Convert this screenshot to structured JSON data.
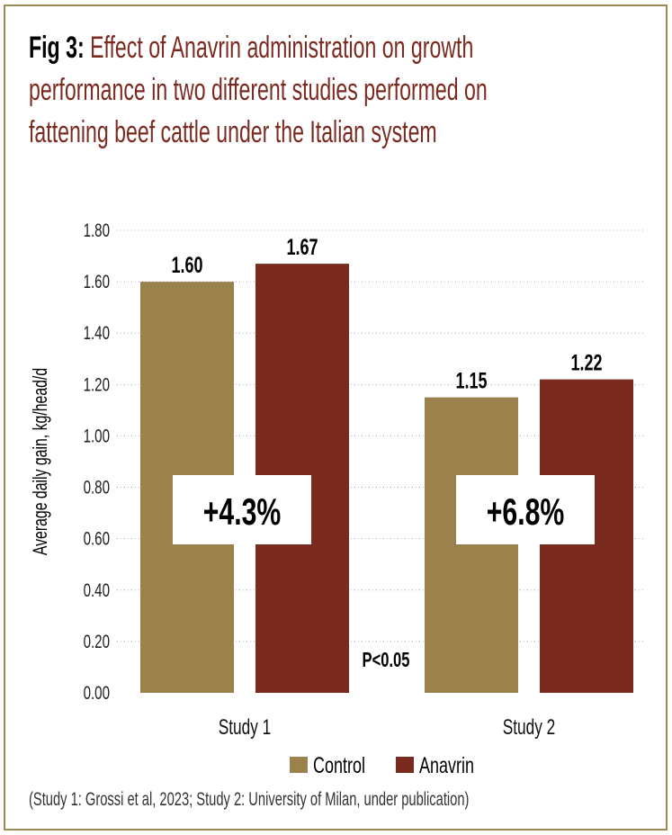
{
  "title": {
    "prefix": "Fig 3:",
    "lines": [
      "Effect of Anavrin administration on growth",
      "performance in two different studies performed on",
      "fattening beef cattle under the Italian system"
    ]
  },
  "footnote": "(Study 1: Grossi et  al, 2023; Study 2: University of Milan, under publication)",
  "chart_data": {
    "type": "bar",
    "title": "Effect of Anavrin administration on growth performance in two different studies performed on fattening beef cattle under the Italian system",
    "xlabel": "",
    "ylabel": "Average daily gain, kg/head/d",
    "ylim": [
      0,
      1.8
    ],
    "yticks": [
      "0.00",
      "0.20",
      "0.40",
      "0.60",
      "0.80",
      "1.00",
      "1.20",
      "1.40",
      "1.60",
      "1.80"
    ],
    "grid": true,
    "categories": [
      "Study 1",
      "Study 2"
    ],
    "series": [
      {
        "name": "Control",
        "color": "#9b814b",
        "values": [
          1.6,
          1.15
        ],
        "labels": [
          "1.60",
          "1.15"
        ]
      },
      {
        "name": "Anavrin",
        "color": "#7b2a20",
        "values": [
          1.67,
          1.22
        ],
        "labels": [
          "1.67",
          "1.22"
        ]
      }
    ],
    "annotations": {
      "differences": [
        "+4.3%",
        "+6.8%"
      ],
      "significance": "P<0.05"
    },
    "legend": "bottom-center"
  }
}
